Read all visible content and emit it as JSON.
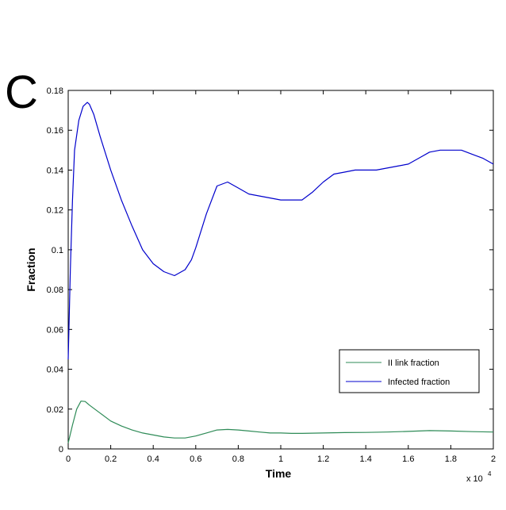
{
  "panel_label": "C",
  "chart_data": {
    "type": "line",
    "xlabel": "Time",
    "ylabel": "Fraction",
    "x_multiplier_label": "x 10",
    "x_multiplier_exponent": "4",
    "xlim": [
      0,
      2
    ],
    "ylim": [
      0,
      0.18
    ],
    "xticks": [
      0,
      0.2,
      0.4,
      0.6,
      0.8,
      1,
      1.2,
      1.4,
      1.6,
      1.8,
      2
    ],
    "xtick_labels": [
      "0",
      "0.2",
      "0.4",
      "0.6",
      "0.8",
      "1",
      "1.2",
      "1.4",
      "1.6",
      "1.8",
      "2"
    ],
    "yticks": [
      0,
      0.02,
      0.04,
      0.06,
      0.08,
      0.1,
      0.12,
      0.14,
      0.16,
      0.18
    ],
    "ytick_labels": [
      "0",
      "0.02",
      "0.04",
      "0.06",
      "0.08",
      "0.1",
      "0.12",
      "0.14",
      "0.16",
      "0.18"
    ],
    "grid": false,
    "legend_position": "lower-right",
    "series": [
      {
        "name": "II link fraction",
        "color": "#2e8b57",
        "x": [
          0,
          0.02,
          0.04,
          0.06,
          0.08,
          0.1,
          0.15,
          0.2,
          0.25,
          0.3,
          0.35,
          0.4,
          0.45,
          0.5,
          0.55,
          0.6,
          0.65,
          0.7,
          0.75,
          0.8,
          0.85,
          0.9,
          0.95,
          1.0,
          1.05,
          1.1,
          1.2,
          1.3,
          1.4,
          1.5,
          1.6,
          1.7,
          1.8,
          1.9,
          2.0
        ],
        "y": [
          0.003,
          0.012,
          0.02,
          0.024,
          0.0238,
          0.022,
          0.018,
          0.014,
          0.0115,
          0.0095,
          0.008,
          0.007,
          0.006,
          0.0055,
          0.0055,
          0.0065,
          0.008,
          0.0095,
          0.0098,
          0.0095,
          0.009,
          0.0085,
          0.008,
          0.008,
          0.0078,
          0.0078,
          0.008,
          0.0082,
          0.0083,
          0.0085,
          0.0088,
          0.0092,
          0.009,
          0.0087,
          0.0085
        ]
      },
      {
        "name": "Infected fraction",
        "color": "#0000cc",
        "x": [
          0,
          0.01,
          0.02,
          0.03,
          0.05,
          0.07,
          0.09,
          0.1,
          0.12,
          0.15,
          0.2,
          0.25,
          0.3,
          0.35,
          0.4,
          0.45,
          0.5,
          0.55,
          0.58,
          0.6,
          0.65,
          0.7,
          0.75,
          0.8,
          0.85,
          0.9,
          0.95,
          1.0,
          1.05,
          1.1,
          1.15,
          1.2,
          1.25,
          1.3,
          1.35,
          1.4,
          1.45,
          1.5,
          1.55,
          1.6,
          1.65,
          1.7,
          1.75,
          1.8,
          1.85,
          1.9,
          1.95,
          2.0
        ],
        "y": [
          0.045,
          0.09,
          0.125,
          0.15,
          0.165,
          0.172,
          0.174,
          0.173,
          0.168,
          0.157,
          0.14,
          0.125,
          0.112,
          0.1,
          0.093,
          0.089,
          0.087,
          0.09,
          0.095,
          0.101,
          0.118,
          0.132,
          0.134,
          0.131,
          0.128,
          0.127,
          0.126,
          0.125,
          0.125,
          0.125,
          0.129,
          0.134,
          0.138,
          0.139,
          0.14,
          0.14,
          0.14,
          0.141,
          0.142,
          0.143,
          0.146,
          0.149,
          0.15,
          0.15,
          0.15,
          0.148,
          0.146,
          0.143
        ]
      }
    ]
  }
}
